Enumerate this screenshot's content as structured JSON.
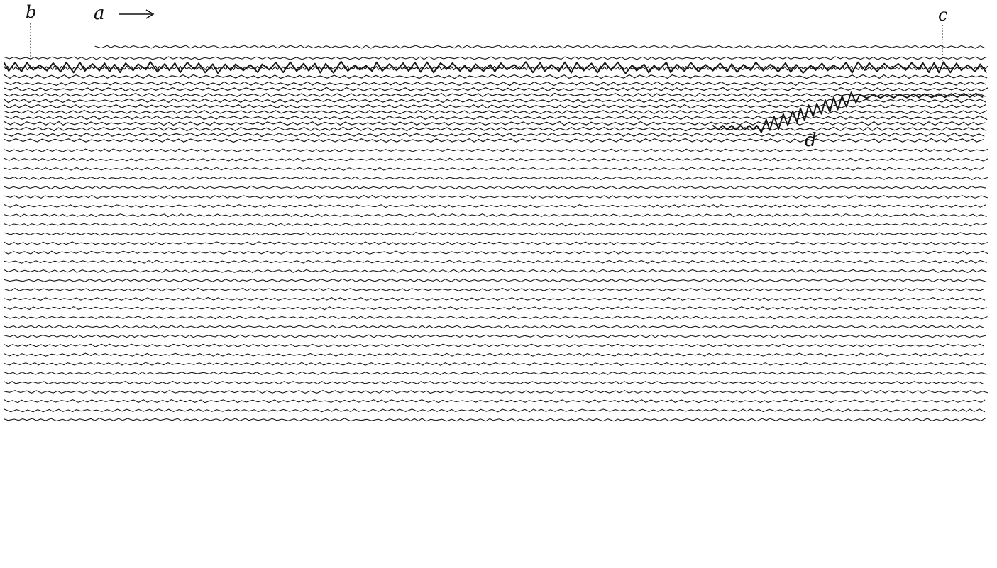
{
  "figure": {
    "labels": {
      "a": "a",
      "b": "b",
      "c": "c",
      "d": "d"
    },
    "record_direction_arrow": "→",
    "trace_count": 45,
    "ink_color": "#151515",
    "background_color": "#ffffff"
  }
}
